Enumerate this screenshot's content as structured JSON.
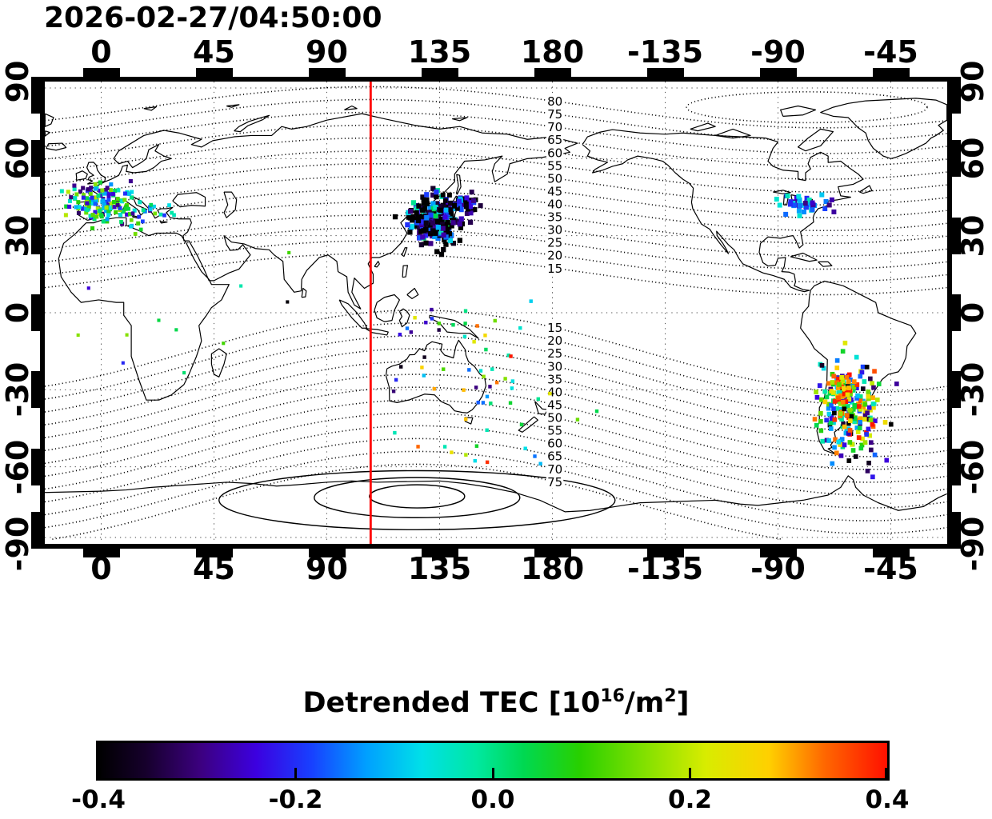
{
  "title": "2026-02-27/04:50:00",
  "axes": {
    "lon_tick_labels": [
      "0",
      "45",
      "90",
      "135",
      "180",
      "-135",
      "-90",
      "-45"
    ],
    "lon_tick_values": [
      0,
      45,
      90,
      135,
      180,
      225,
      270,
      315
    ],
    "lat_tick_labels": [
      "90",
      "60",
      "30",
      "0",
      "-30",
      "-60",
      "-90"
    ],
    "lat_tick_values": [
      90,
      60,
      30,
      0,
      -30,
      -60,
      -90
    ],
    "lon_range_deg": [
      -22.5,
      337.5
    ],
    "lat_range_deg": [
      -90,
      90
    ],
    "grid": "dashed"
  },
  "chart_data": {
    "type": "scatter",
    "title": "Detrended TEC map",
    "timestamp": "2026-02-27/04:50:00",
    "projection": "equirectangular world map with coastlines",
    "red_meridian_lon_deg": 107.5,
    "contours": {
      "style": "dotted",
      "interval_deg": 5,
      "north_labels": [
        "80",
        "75",
        "70",
        "65",
        "60",
        "55",
        "50",
        "45",
        "40",
        "35",
        "30",
        "25",
        "20",
        "15"
      ],
      "south_labels": [
        "15",
        "20",
        "25",
        "30",
        "35",
        "40",
        "45",
        "50",
        "55",
        "60",
        "65",
        "70",
        "75"
      ],
      "label_lon_deg": 181,
      "south_pole_solid_ovals": 3
    },
    "colorbar": {
      "label_prefix": "Detrended TEC  [10",
      "label_sup1": "16",
      "label_mid": "/m",
      "label_sup2": "2",
      "label_suffix": "]",
      "tick_labels": [
        "-0.4",
        "-0.2",
        "0.0",
        "0.2",
        "0.4"
      ],
      "tick_values": [
        -0.4,
        -0.2,
        0.0,
        0.2,
        0.4
      ],
      "range": [
        -0.4,
        0.4
      ],
      "stops": [
        [
          0,
          "#000000"
        ],
        [
          0.06,
          "#16002c"
        ],
        [
          0.13,
          "#3c0080"
        ],
        [
          0.2,
          "#3c00e0"
        ],
        [
          0.27,
          "#1840ff"
        ],
        [
          0.34,
          "#00a0ff"
        ],
        [
          0.41,
          "#00e0e8"
        ],
        [
          0.48,
          "#00e8a0"
        ],
        [
          0.54,
          "#00d850"
        ],
        [
          0.61,
          "#28d000"
        ],
        [
          0.69,
          "#80e000"
        ],
        [
          0.77,
          "#d8ec00"
        ],
        [
          0.85,
          "#ffd000"
        ],
        [
          0.92,
          "#ff6800"
        ],
        [
          1,
          "#ff1000"
        ]
      ]
    },
    "clusters": [
      {
        "name": "east-asia",
        "center": [
          133.5,
          35.5
        ],
        "spread": [
          5,
          4
        ],
        "count": 300,
        "value_min": -0.43,
        "value_max": 0.05,
        "value_pow": 2.4,
        "size": 2.0
      },
      {
        "name": "east-asia-northeast-arm",
        "center": [
          144,
          42
        ],
        "spread": [
          3,
          2
        ],
        "count": 50,
        "value_min": -0.43,
        "value_max": -0.1,
        "value_pow": 1.8,
        "size": 1.9
      },
      {
        "name": "western-europe",
        "center": [
          0,
          43
        ],
        "spread": [
          7,
          3.5
        ],
        "count": 150,
        "value_min": -0.32,
        "value_max": 0.2,
        "value_pow": 1,
        "size": 1.6
      },
      {
        "name": "southern-europe",
        "center": [
          16,
          39
        ],
        "spread": [
          6,
          3
        ],
        "count": 25,
        "value_min": -0.3,
        "value_max": 0.15,
        "value_pow": 1,
        "size": 1.5
      },
      {
        "name": "north-america-great-lakes",
        "center": [
          280,
          42.5
        ],
        "spread": [
          4.5,
          1.6
        ],
        "count": 42,
        "value_min": -0.3,
        "value_max": -0.02,
        "value_pow": 1,
        "size": 1.9
      },
      {
        "name": "south-america",
        "center": [
          298,
          -38
        ],
        "spread": [
          6,
          9
        ],
        "count": 240,
        "value_min": -0.43,
        "value_max": 0.43,
        "value_pow": 1,
        "size": 1.8
      },
      {
        "name": "south-america-red-patch",
        "center": [
          296,
          -30
        ],
        "spread": [
          3,
          2.5
        ],
        "count": 40,
        "value_min": 0.1,
        "value_max": 0.43,
        "value_pow": 0.7,
        "size": 1.8
      },
      {
        "name": "maritime-sparse",
        "center": [
          150,
          -25
        ],
        "spread": [
          22,
          14
        ],
        "count": 40,
        "value_min": -0.4,
        "value_max": 0.4,
        "value_pow": 1,
        "size": 1.4
      },
      {
        "name": "southern-ocean-sparse",
        "center": [
          160,
          -55
        ],
        "spread": [
          14,
          4
        ],
        "count": 10,
        "value_min": -0.2,
        "value_max": 0.4,
        "value_pow": 1,
        "size": 1.4
      },
      {
        "name": "indonesia-sparse",
        "center": [
          135,
          -6
        ],
        "spread": [
          12,
          4
        ],
        "count": 14,
        "value_min": -0.35,
        "value_max": 0.35,
        "value_pow": 1,
        "size": 1.4
      },
      {
        "name": "scattered-singles",
        "center": [
          20,
          0
        ],
        "spread": [
          25,
          22
        ],
        "count": 12,
        "value_min": -0.4,
        "value_max": 0.2,
        "value_pow": 1,
        "size": 1.3
      }
    ]
  }
}
